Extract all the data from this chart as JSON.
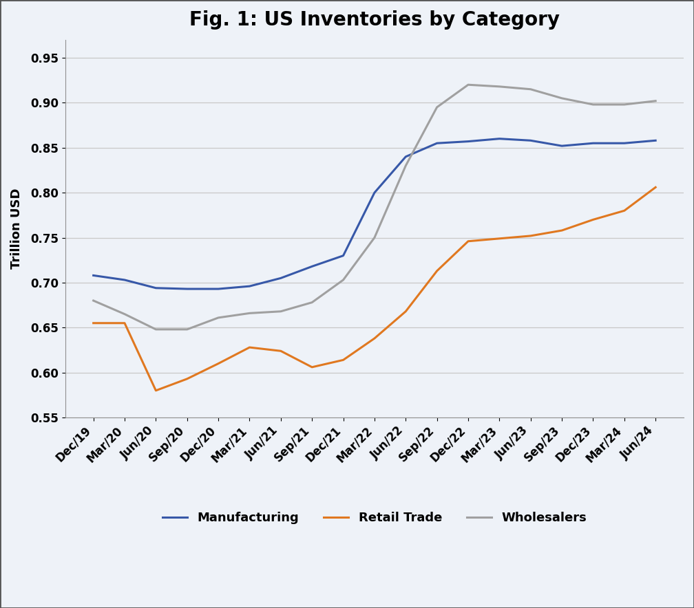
{
  "title": "Fig. 1: US Inventories by Category",
  "ylabel": "Trillion USD",
  "ylim": [
    0.55,
    0.97
  ],
  "yticks": [
    0.55,
    0.6,
    0.65,
    0.7,
    0.75,
    0.8,
    0.85,
    0.9,
    0.95
  ],
  "x_labels": [
    "Dec/19",
    "Mar/20",
    "Jun/20",
    "Sep/20",
    "Dec/20",
    "Mar/21",
    "Jun/21",
    "Sep/21",
    "Dec/21",
    "Mar/22",
    "Jun/22",
    "Sep/22",
    "Dec/22",
    "Mar/23",
    "Jun/23",
    "Sep/23",
    "Dec/23",
    "Mar/24",
    "Jun/24"
  ],
  "manufacturing": [
    0.708,
    0.703,
    0.694,
    0.693,
    0.693,
    0.696,
    0.705,
    0.718,
    0.73,
    0.8,
    0.84,
    0.855,
    0.857,
    0.86,
    0.858,
    0.852,
    0.855,
    0.855,
    0.858
  ],
  "retail_trade": [
    0.655,
    0.655,
    0.58,
    0.593,
    0.61,
    0.628,
    0.624,
    0.606,
    0.614,
    0.638,
    0.668,
    0.713,
    0.746,
    0.749,
    0.752,
    0.758,
    0.77,
    0.78,
    0.806
  ],
  "wholesalers": [
    0.68,
    0.665,
    0.648,
    0.648,
    0.661,
    0.666,
    0.668,
    0.678,
    0.703,
    0.75,
    0.83,
    0.895,
    0.92,
    0.918,
    0.915,
    0.905,
    0.898,
    0.898,
    0.902
  ],
  "manufacturing_color": "#3758A8",
  "retail_color": "#E07820",
  "wholesalers_color": "#A0A0A0",
  "background_color": "#EEF2F8",
  "line_width": 2.2,
  "title_fontsize": 20,
  "label_fontsize": 13,
  "tick_fontsize": 12,
  "legend_fontsize": 13
}
